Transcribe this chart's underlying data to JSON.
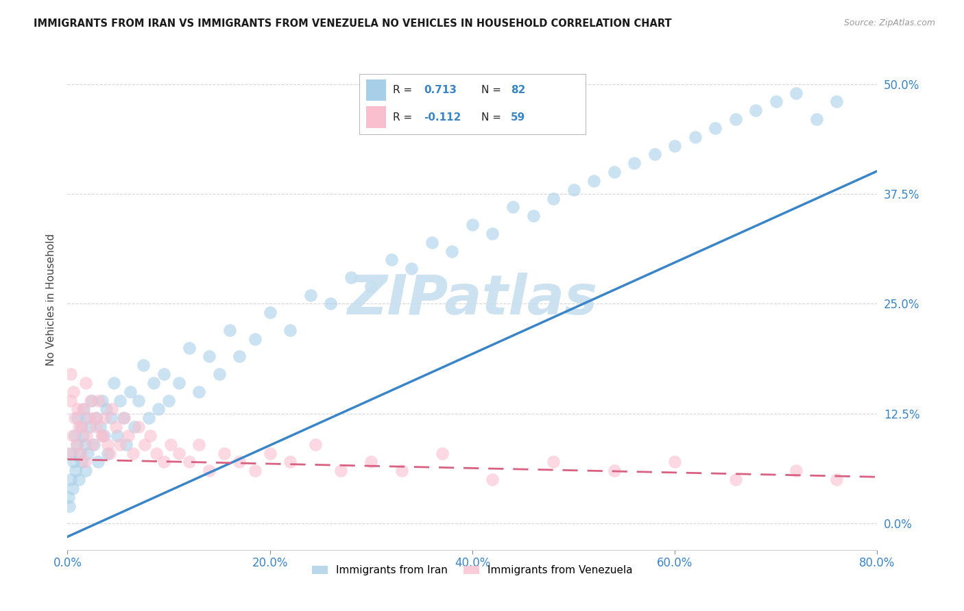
{
  "title": "IMMIGRANTS FROM IRAN VS IMMIGRANTS FROM VENEZUELA NO VEHICLES IN HOUSEHOLD CORRELATION CHART",
  "source": "Source: ZipAtlas.com",
  "ylabel": "No Vehicles in Household",
  "xlim": [
    0.0,
    0.8
  ],
  "ylim": [
    -0.03,
    0.54
  ],
  "iran_R": "0.713",
  "iran_N": "82",
  "venezuela_R": "-0.112",
  "venezuela_N": "59",
  "iran_color": "#a8cfe8",
  "venezuela_color": "#f9bfcf",
  "iran_line_color": "#3a85c7",
  "venezuela_line_color": "#d96080",
  "tick_color": "#3a85c7",
  "watermark_color": "#c8dff0",
  "legend_label_iran": "Immigrants from Iran",
  "legend_label_venezuela": "Immigrants from Venezuela",
  "iran_line_slope": 0.52,
  "iran_line_intercept": -0.015,
  "venezuela_line_slope": -0.025,
  "venezuela_line_intercept": 0.073,
  "iran_scatter_x": [
    0.001,
    0.002,
    0.003,
    0.004,
    0.005,
    0.006,
    0.007,
    0.008,
    0.009,
    0.01,
    0.011,
    0.012,
    0.013,
    0.014,
    0.015,
    0.016,
    0.017,
    0.018,
    0.019,
    0.02,
    0.022,
    0.024,
    0.026,
    0.028,
    0.03,
    0.032,
    0.034,
    0.036,
    0.038,
    0.04,
    0.043,
    0.046,
    0.049,
    0.052,
    0.055,
    0.058,
    0.062,
    0.066,
    0.07,
    0.075,
    0.08,
    0.085,
    0.09,
    0.095,
    0.1,
    0.11,
    0.12,
    0.13,
    0.14,
    0.15,
    0.16,
    0.17,
    0.185,
    0.2,
    0.22,
    0.24,
    0.26,
    0.28,
    0.3,
    0.32,
    0.34,
    0.36,
    0.38,
    0.4,
    0.42,
    0.44,
    0.46,
    0.48,
    0.5,
    0.52,
    0.54,
    0.56,
    0.58,
    0.6,
    0.62,
    0.64,
    0.66,
    0.68,
    0.7,
    0.72,
    0.74,
    0.76
  ],
  "iran_scatter_y": [
    0.03,
    0.02,
    0.05,
    0.08,
    0.04,
    0.07,
    0.1,
    0.06,
    0.09,
    0.12,
    0.05,
    0.08,
    0.11,
    0.07,
    0.1,
    0.13,
    0.09,
    0.06,
    0.12,
    0.08,
    0.11,
    0.14,
    0.09,
    0.12,
    0.07,
    0.11,
    0.14,
    0.1,
    0.13,
    0.08,
    0.12,
    0.16,
    0.1,
    0.14,
    0.12,
    0.09,
    0.15,
    0.11,
    0.14,
    0.18,
    0.12,
    0.16,
    0.13,
    0.17,
    0.14,
    0.16,
    0.2,
    0.15,
    0.19,
    0.17,
    0.22,
    0.19,
    0.21,
    0.24,
    0.22,
    0.26,
    0.25,
    0.28,
    0.27,
    0.3,
    0.29,
    0.32,
    0.31,
    0.34,
    0.33,
    0.36,
    0.35,
    0.37,
    0.38,
    0.39,
    0.4,
    0.41,
    0.42,
    0.43,
    0.44,
    0.45,
    0.46,
    0.47,
    0.48,
    0.49,
    0.46,
    0.48
  ],
  "iran_scatter_y_outlier": [
    0.48
  ],
  "iran_scatter_x_outlier": [
    0.62
  ],
  "venezuela_scatter_x": [
    0.001,
    0.003,
    0.005,
    0.007,
    0.009,
    0.011,
    0.013,
    0.015,
    0.017,
    0.019,
    0.022,
    0.025,
    0.028,
    0.031,
    0.034,
    0.037,
    0.04,
    0.044,
    0.048,
    0.052,
    0.056,
    0.06,
    0.065,
    0.07,
    0.076,
    0.082,
    0.088,
    0.095,
    0.102,
    0.11,
    0.12,
    0.13,
    0.14,
    0.155,
    0.17,
    0.185,
    0.2,
    0.22,
    0.245,
    0.27,
    0.3,
    0.33,
    0.37,
    0.42,
    0.48,
    0.54,
    0.6,
    0.66,
    0.72,
    0.76,
    0.003,
    0.006,
    0.01,
    0.014,
    0.018,
    0.023,
    0.028,
    0.034,
    0.042
  ],
  "venezuela_scatter_y": [
    0.08,
    0.14,
    0.1,
    0.12,
    0.09,
    0.11,
    0.08,
    0.13,
    0.07,
    0.1,
    0.12,
    0.09,
    0.11,
    0.14,
    0.1,
    0.12,
    0.09,
    0.13,
    0.11,
    0.09,
    0.12,
    0.1,
    0.08,
    0.11,
    0.09,
    0.1,
    0.08,
    0.07,
    0.09,
    0.08,
    0.07,
    0.09,
    0.06,
    0.08,
    0.07,
    0.06,
    0.08,
    0.07,
    0.09,
    0.06,
    0.07,
    0.06,
    0.08,
    0.05,
    0.07,
    0.06,
    0.07,
    0.05,
    0.06,
    0.05,
    0.17,
    0.15,
    0.13,
    0.11,
    0.16,
    0.14,
    0.12,
    0.1,
    0.08
  ]
}
